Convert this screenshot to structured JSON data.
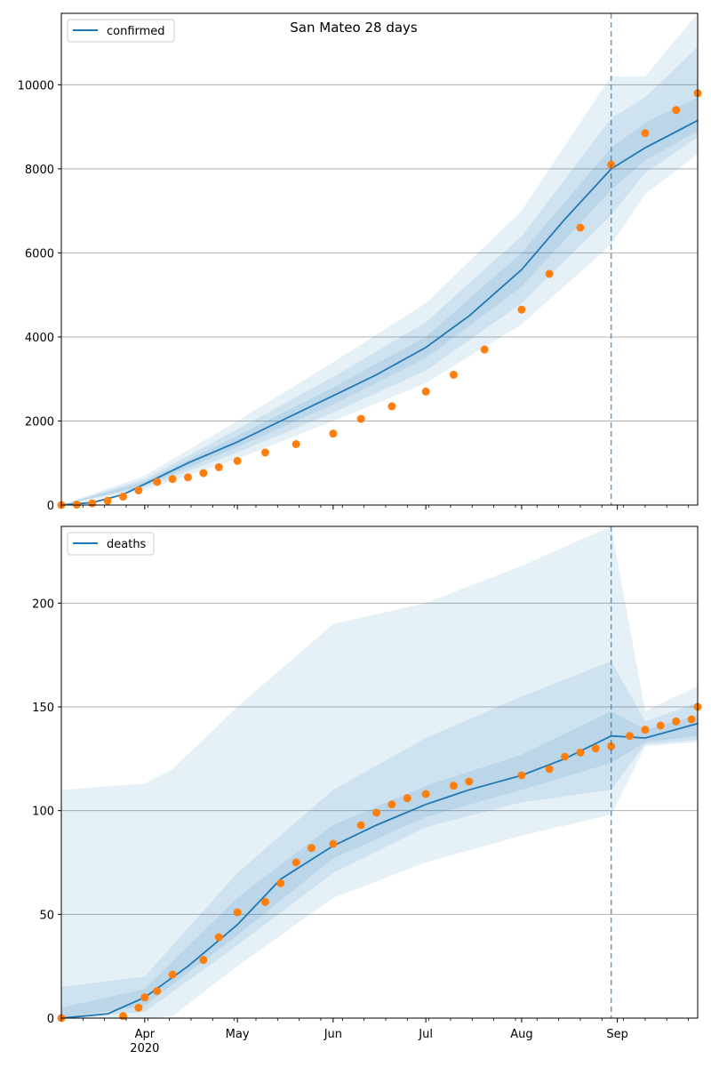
{
  "title": "San Mateo 28 days",
  "colors": {
    "model_line": "#1f77b4",
    "observed_points": "#ff7f0e",
    "band": "#1f77b4",
    "forecast_marker": "#1f77b4",
    "grid": "#b0b0b0"
  },
  "x_axis": {
    "months": [
      {
        "label": "Apr",
        "date": "2020-04-01"
      },
      {
        "label": "May",
        "date": "2020-05-01"
      },
      {
        "label": "Jun",
        "date": "2020-06-01"
      },
      {
        "label": "Jul",
        "date": "2020-07-01"
      },
      {
        "label": "Aug",
        "date": "2020-08-01"
      },
      {
        "label": "Sep",
        "date": "2020-09-01"
      }
    ],
    "year_label": "2020",
    "range": [
      "2020-03-05",
      "2020-09-27"
    ],
    "forecast_start": "2020-08-30"
  },
  "chart_data": [
    {
      "type": "line",
      "legend": "confirmed",
      "legend_position": "top-left",
      "grid": "horizontal",
      "ylim": [
        0,
        11700
      ],
      "yticks": [
        0,
        2000,
        4000,
        6000,
        8000,
        10000
      ],
      "model_median": [
        [
          "2020-03-05",
          0
        ],
        [
          "2020-03-15",
          60
        ],
        [
          "2020-03-25",
          250
        ],
        [
          "2020-04-01",
          500
        ],
        [
          "2020-04-15",
          1000
        ],
        [
          "2020-05-01",
          1500
        ],
        [
          "2020-05-15",
          2000
        ],
        [
          "2020-06-01",
          2600
        ],
        [
          "2020-06-15",
          3100
        ],
        [
          "2020-07-01",
          3750
        ],
        [
          "2020-07-15",
          4500
        ],
        [
          "2020-08-01",
          5600
        ],
        [
          "2020-08-15",
          6800
        ],
        [
          "2020-08-30",
          8000
        ],
        [
          "2020-09-10",
          8500
        ],
        [
          "2020-09-27",
          9150
        ]
      ],
      "band_outer": [
        [
          "2020-03-05",
          0,
          0
        ],
        [
          "2020-04-01",
          350,
          700
        ],
        [
          "2020-05-01",
          1100,
          2000
        ],
        [
          "2020-06-01",
          2000,
          3400
        ],
        [
          "2020-07-01",
          2900,
          4800
        ],
        [
          "2020-08-01",
          4300,
          7000
        ],
        [
          "2020-08-30",
          6200,
          10200
        ],
        [
          "2020-09-10",
          7400,
          10200
        ],
        [
          "2020-09-27",
          8350,
          11700
        ]
      ],
      "band_middle": [
        [
          "2020-03-05",
          0,
          0
        ],
        [
          "2020-04-01",
          420,
          620
        ],
        [
          "2020-05-01",
          1250,
          1800
        ],
        [
          "2020-06-01",
          2200,
          3050
        ],
        [
          "2020-07-01",
          3200,
          4350
        ],
        [
          "2020-08-01",
          4800,
          6400
        ],
        [
          "2020-08-30",
          6900,
          9200
        ],
        [
          "2020-09-10",
          7900,
          9700
        ],
        [
          "2020-09-27",
          8750,
          10900
        ]
      ],
      "band_inner": [
        [
          "2020-03-05",
          0,
          0
        ],
        [
          "2020-04-01",
          460,
          560
        ],
        [
          "2020-05-01",
          1380,
          1650
        ],
        [
          "2020-06-01",
          2400,
          2800
        ],
        [
          "2020-07-01",
          3500,
          4000
        ],
        [
          "2020-08-01",
          5200,
          6000
        ],
        [
          "2020-08-30",
          7500,
          8500
        ],
        [
          "2020-09-10",
          8200,
          9100
        ],
        [
          "2020-09-27",
          8900,
          9700
        ]
      ],
      "observed": [
        [
          "2020-03-05",
          0
        ],
        [
          "2020-03-10",
          10
        ],
        [
          "2020-03-15",
          40
        ],
        [
          "2020-03-20",
          100
        ],
        [
          "2020-03-25",
          200
        ],
        [
          "2020-03-30",
          350
        ],
        [
          "2020-04-05",
          550
        ],
        [
          "2020-04-10",
          620
        ],
        [
          "2020-04-15",
          660
        ],
        [
          "2020-04-20",
          760
        ],
        [
          "2020-04-25",
          900
        ],
        [
          "2020-05-01",
          1050
        ],
        [
          "2020-05-10",
          1250
        ],
        [
          "2020-05-20",
          1450
        ],
        [
          "2020-06-01",
          1700
        ],
        [
          "2020-06-10",
          2050
        ],
        [
          "2020-06-20",
          2350
        ],
        [
          "2020-07-01",
          2700
        ],
        [
          "2020-07-10",
          3100
        ],
        [
          "2020-07-20",
          3700
        ],
        [
          "2020-08-01",
          4650
        ],
        [
          "2020-08-10",
          5500
        ],
        [
          "2020-08-20",
          6600
        ],
        [
          "2020-08-30",
          8100
        ],
        [
          "2020-09-10",
          8850
        ],
        [
          "2020-09-20",
          9400
        ],
        [
          "2020-09-27",
          9800
        ]
      ]
    },
    {
      "type": "line",
      "legend": "deaths",
      "legend_position": "top-left",
      "grid": "horizontal",
      "ylim": [
        0,
        237
      ],
      "yticks": [
        0,
        50,
        100,
        150,
        200
      ],
      "model_median": [
        [
          "2020-03-05",
          0
        ],
        [
          "2020-03-20",
          2
        ],
        [
          "2020-04-01",
          10
        ],
        [
          "2020-04-15",
          25
        ],
        [
          "2020-05-01",
          45
        ],
        [
          "2020-05-15",
          67
        ],
        [
          "2020-06-01",
          83
        ],
        [
          "2020-06-15",
          93
        ],
        [
          "2020-07-01",
          103
        ],
        [
          "2020-07-15",
          110
        ],
        [
          "2020-08-01",
          117
        ],
        [
          "2020-08-15",
          125
        ],
        [
          "2020-08-30",
          136
        ],
        [
          "2020-09-10",
          135
        ],
        [
          "2020-09-27",
          142
        ]
      ],
      "band_outer": [
        [
          "2020-03-05",
          0,
          110
        ],
        [
          "2020-04-01",
          0,
          113
        ],
        [
          "2020-04-10",
          1,
          120
        ],
        [
          "2020-05-01",
          25,
          150
        ],
        [
          "2020-06-01",
          58,
          190
        ],
        [
          "2020-07-01",
          75,
          200
        ],
        [
          "2020-08-01",
          88,
          218
        ],
        [
          "2020-08-30",
          98,
          237
        ],
        [
          "2020-09-10",
          131,
          148
        ],
        [
          "2020-09-27",
          133,
          160
        ]
      ],
      "band_middle": [
        [
          "2020-03-05",
          0,
          15
        ],
        [
          "2020-04-01",
          3,
          20
        ],
        [
          "2020-05-01",
          35,
          70
        ],
        [
          "2020-06-01",
          70,
          110
        ],
        [
          "2020-07-01",
          92,
          135
        ],
        [
          "2020-08-01",
          104,
          155
        ],
        [
          "2020-08-30",
          110,
          172
        ],
        [
          "2020-09-10",
          132,
          143
        ],
        [
          "2020-09-27",
          134,
          152
        ]
      ],
      "band_inner": [
        [
          "2020-03-05",
          0,
          5
        ],
        [
          "2020-04-01",
          6,
          14
        ],
        [
          "2020-05-01",
          40,
          58
        ],
        [
          "2020-06-01",
          77,
          93
        ],
        [
          "2020-07-01",
          97,
          112
        ],
        [
          "2020-08-01",
          110,
          127
        ],
        [
          "2020-08-30",
          123,
          148
        ],
        [
          "2020-09-10",
          133,
          139
        ],
        [
          "2020-09-27",
          136,
          146
        ]
      ],
      "observed": [
        [
          "2020-03-05",
          0
        ],
        [
          "2020-03-25",
          1
        ],
        [
          "2020-03-30",
          5
        ],
        [
          "2020-04-01",
          10
        ],
        [
          "2020-04-05",
          13
        ],
        [
          "2020-04-10",
          21
        ],
        [
          "2020-04-20",
          28
        ],
        [
          "2020-04-25",
          39
        ],
        [
          "2020-05-01",
          51
        ],
        [
          "2020-05-10",
          56
        ],
        [
          "2020-05-15",
          65
        ],
        [
          "2020-05-20",
          75
        ],
        [
          "2020-05-25",
          82
        ],
        [
          "2020-06-01",
          84
        ],
        [
          "2020-06-10",
          93
        ],
        [
          "2020-06-15",
          99
        ],
        [
          "2020-06-20",
          103
        ],
        [
          "2020-06-25",
          106
        ],
        [
          "2020-07-01",
          108
        ],
        [
          "2020-07-10",
          112
        ],
        [
          "2020-07-15",
          114
        ],
        [
          "2020-08-01",
          117
        ],
        [
          "2020-08-10",
          120
        ],
        [
          "2020-08-15",
          126
        ],
        [
          "2020-08-20",
          128
        ],
        [
          "2020-08-25",
          130
        ],
        [
          "2020-08-30",
          131
        ],
        [
          "2020-09-05",
          136
        ],
        [
          "2020-09-10",
          139
        ],
        [
          "2020-09-15",
          141
        ],
        [
          "2020-09-20",
          143
        ],
        [
          "2020-09-25",
          144
        ],
        [
          "2020-09-27",
          150
        ]
      ]
    }
  ]
}
